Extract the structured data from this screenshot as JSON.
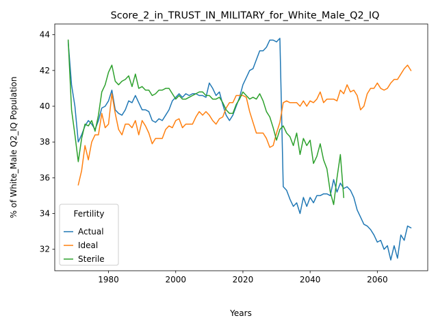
{
  "chart_data": {
    "type": "line",
    "title": "Score_2_in_TRUST_IN_MILITARY_for_White_Male_Q2_IQ",
    "xlabel": "Years",
    "ylabel": "% of White_Male Q2_IQ Population",
    "xlim": [
      1964,
      2075
    ],
    "ylim": [
      30.8,
      44.6
    ],
    "xticks": [
      1980,
      2000,
      2020,
      2040,
      2060
    ],
    "yticks": [
      32,
      34,
      36,
      38,
      40,
      42,
      44
    ],
    "xtick_labels": [
      "1980",
      "2000",
      "2020",
      "2040",
      "2060"
    ],
    "ytick_labels": [
      "32",
      "34",
      "36",
      "38",
      "40",
      "42",
      "44"
    ],
    "grid": false,
    "legend": {
      "title": "Fertility",
      "placement": "bottom-left"
    },
    "series": [
      {
        "name": "Actual",
        "color": "#1f77b4",
        "x": [
          1968,
          1969,
          1970,
          1971,
          1972,
          1973,
          1974,
          1975,
          1976,
          1977,
          1978,
          1979,
          1980,
          1981,
          1982,
          1983,
          1984,
          1985,
          1986,
          1987,
          1988,
          1989,
          1990,
          1991,
          1992,
          1993,
          1994,
          1995,
          1996,
          1997,
          1998,
          1999,
          2000,
          2001,
          2002,
          2003,
          2004,
          2005,
          2006,
          2007,
          2008,
          2009,
          2010,
          2011,
          2012,
          2013,
          2014,
          2015,
          2016,
          2017,
          2018,
          2019,
          2020,
          2021,
          2022,
          2023,
          2024,
          2025,
          2026,
          2027,
          2028,
          2029,
          2030,
          2031,
          2032,
          2033,
          2034,
          2035,
          2036,
          2037,
          2038,
          2039,
          2040,
          2041,
          2042,
          2043,
          2044,
          2045,
          2046,
          2047,
          2048,
          2049,
          2050,
          2051,
          2052,
          2053,
          2054,
          2055,
          2056,
          2057,
          2058,
          2059,
          2060,
          2061,
          2062,
          2063,
          2064,
          2065,
          2066,
          2067,
          2068,
          2069,
          2070
        ],
        "values": [
          43.6,
          41.2,
          40.0,
          38.0,
          38.4,
          38.9,
          39.2,
          39.0,
          38.7,
          39.2,
          39.9,
          40.0,
          40.3,
          40.9,
          39.8,
          39.6,
          39.5,
          39.8,
          40.3,
          40.2,
          40.6,
          40.2,
          39.8,
          39.8,
          39.7,
          39.2,
          39.1,
          39.3,
          39.2,
          39.5,
          39.8,
          40.3,
          40.5,
          40.7,
          40.5,
          40.7,
          40.6,
          40.7,
          40.7,
          40.6,
          40.6,
          40.5,
          41.3,
          41.0,
          40.6,
          40.8,
          40.1,
          39.5,
          39.2,
          39.5,
          40.0,
          40.5,
          41.2,
          41.6,
          42.0,
          42.1,
          42.6,
          43.1,
          43.1,
          43.3,
          43.7,
          43.7,
          43.6,
          43.8,
          35.5,
          35.3,
          34.8,
          34.4,
          34.6,
          34.0,
          34.9,
          34.4,
          34.9,
          34.6,
          35.0,
          35.0,
          35.1,
          35.1,
          35.0,
          35.9,
          35.2,
          35.7,
          35.4,
          35.5,
          35.3,
          34.9,
          34.2,
          33.8,
          33.4,
          33.3,
          33.1,
          32.8,
          32.4,
          32.5,
          32.0,
          32.2,
          31.4,
          32.2,
          31.5,
          32.8,
          32.5,
          33.3,
          33.2
        ]
      },
      {
        "name": "Ideal",
        "color": "#ff7f0e",
        "x": [
          1971,
          1972,
          1973,
          1974,
          1975,
          1976,
          1977,
          1978,
          1979,
          1980,
          1981,
          1982,
          1983,
          1984,
          1985,
          1986,
          1987,
          1988,
          1989,
          1990,
          1991,
          1992,
          1993,
          1994,
          1995,
          1996,
          1997,
          1998,
          1999,
          2000,
          2001,
          2002,
          2003,
          2004,
          2005,
          2006,
          2007,
          2008,
          2009,
          2010,
          2011,
          2012,
          2013,
          2014,
          2015,
          2016,
          2017,
          2018,
          2019,
          2020,
          2021,
          2022,
          2023,
          2024,
          2025,
          2026,
          2027,
          2028,
          2029,
          2030,
          2031,
          2032,
          2033,
          2034,
          2035,
          2036,
          2037,
          2038,
          2039,
          2040,
          2041,
          2042,
          2043,
          2044,
          2045,
          2046,
          2047,
          2048,
          2049,
          2050,
          2051,
          2052,
          2053,
          2054,
          2055,
          2056,
          2057,
          2058,
          2059,
          2060,
          2061,
          2062,
          2063,
          2064,
          2065,
          2066,
          2067,
          2068,
          2069,
          2070
        ],
        "values": [
          35.6,
          36.4,
          37.8,
          37.0,
          38.0,
          38.4,
          38.4,
          39.6,
          38.8,
          39.0,
          40.7,
          39.6,
          38.7,
          38.4,
          39.0,
          39.0,
          38.8,
          39.2,
          38.4,
          39.2,
          38.9,
          38.5,
          37.9,
          38.2,
          38.2,
          38.2,
          38.7,
          38.9,
          38.8,
          39.2,
          39.3,
          38.8,
          39.0,
          39.0,
          39.0,
          39.4,
          39.7,
          39.5,
          39.7,
          39.5,
          39.2,
          39.0,
          39.3,
          39.4,
          39.9,
          40.2,
          40.2,
          40.6,
          40.6,
          40.6,
          40.5,
          39.7,
          39.1,
          38.5,
          38.5,
          38.5,
          38.2,
          37.7,
          37.8,
          38.5,
          39.1,
          40.2,
          40.3,
          40.2,
          40.2,
          40.2,
          40.0,
          40.3,
          40.0,
          40.3,
          40.2,
          40.4,
          40.8,
          40.2,
          40.4,
          40.4,
          40.4,
          40.3,
          40.9,
          40.7,
          41.2,
          40.8,
          40.9,
          40.6,
          39.8,
          40.0,
          40.7,
          41.0,
          41.0,
          41.3,
          41.0,
          40.9,
          41.0,
          41.3,
          41.5,
          41.5,
          41.8,
          42.1,
          42.3,
          42.0
        ]
      },
      {
        "name": "Sterile",
        "color": "#2ca02c",
        "x": [
          1968,
          1969,
          1970,
          1971,
          1972,
          1973,
          1974,
          1975,
          1976,
          1977,
          1978,
          1979,
          1980,
          1981,
          1982,
          1983,
          1984,
          1985,
          1986,
          1987,
          1988,
          1989,
          1990,
          1991,
          1992,
          1993,
          1994,
          1995,
          1996,
          1997,
          1998,
          1999,
          2000,
          2001,
          2002,
          2003,
          2004,
          2005,
          2006,
          2007,
          2008,
          2009,
          2010,
          2011,
          2012,
          2013,
          2014,
          2015,
          2016,
          2017,
          2018,
          2019,
          2020,
          2021,
          2022,
          2023,
          2024,
          2025,
          2026,
          2027,
          2028,
          2029,
          2030,
          2031,
          2032,
          2033,
          2034,
          2035,
          2036,
          2037,
          2038,
          2039,
          2040,
          2041,
          2042,
          2043,
          2044,
          2045,
          2046,
          2047,
          2048,
          2049,
          2050
        ],
        "values": [
          43.7,
          39.8,
          38.4,
          36.9,
          38.2,
          39.0,
          38.9,
          39.2,
          38.6,
          39.5,
          40.8,
          41.2,
          41.9,
          42.3,
          41.4,
          41.2,
          41.4,
          41.5,
          41.7,
          41.1,
          41.8,
          41.0,
          41.1,
          40.9,
          40.9,
          40.6,
          40.7,
          40.9,
          40.9,
          41.0,
          41.0,
          40.7,
          40.4,
          40.6,
          40.4,
          40.4,
          40.5,
          40.6,
          40.7,
          40.8,
          40.8,
          40.6,
          40.6,
          40.4,
          40.4,
          40.5,
          40.2,
          39.8,
          39.6,
          39.6,
          40.1,
          40.4,
          40.8,
          40.6,
          40.4,
          40.5,
          40.4,
          40.7,
          40.3,
          39.7,
          39.4,
          38.8,
          38.1,
          38.7,
          38.9,
          38.5,
          38.3,
          37.8,
          38.5,
          37.3,
          38.2,
          37.8,
          38.1,
          36.8,
          37.2,
          37.9,
          37.0,
          36.5,
          35.2,
          34.5,
          36.0,
          37.3,
          34.9
        ]
      }
    ]
  }
}
